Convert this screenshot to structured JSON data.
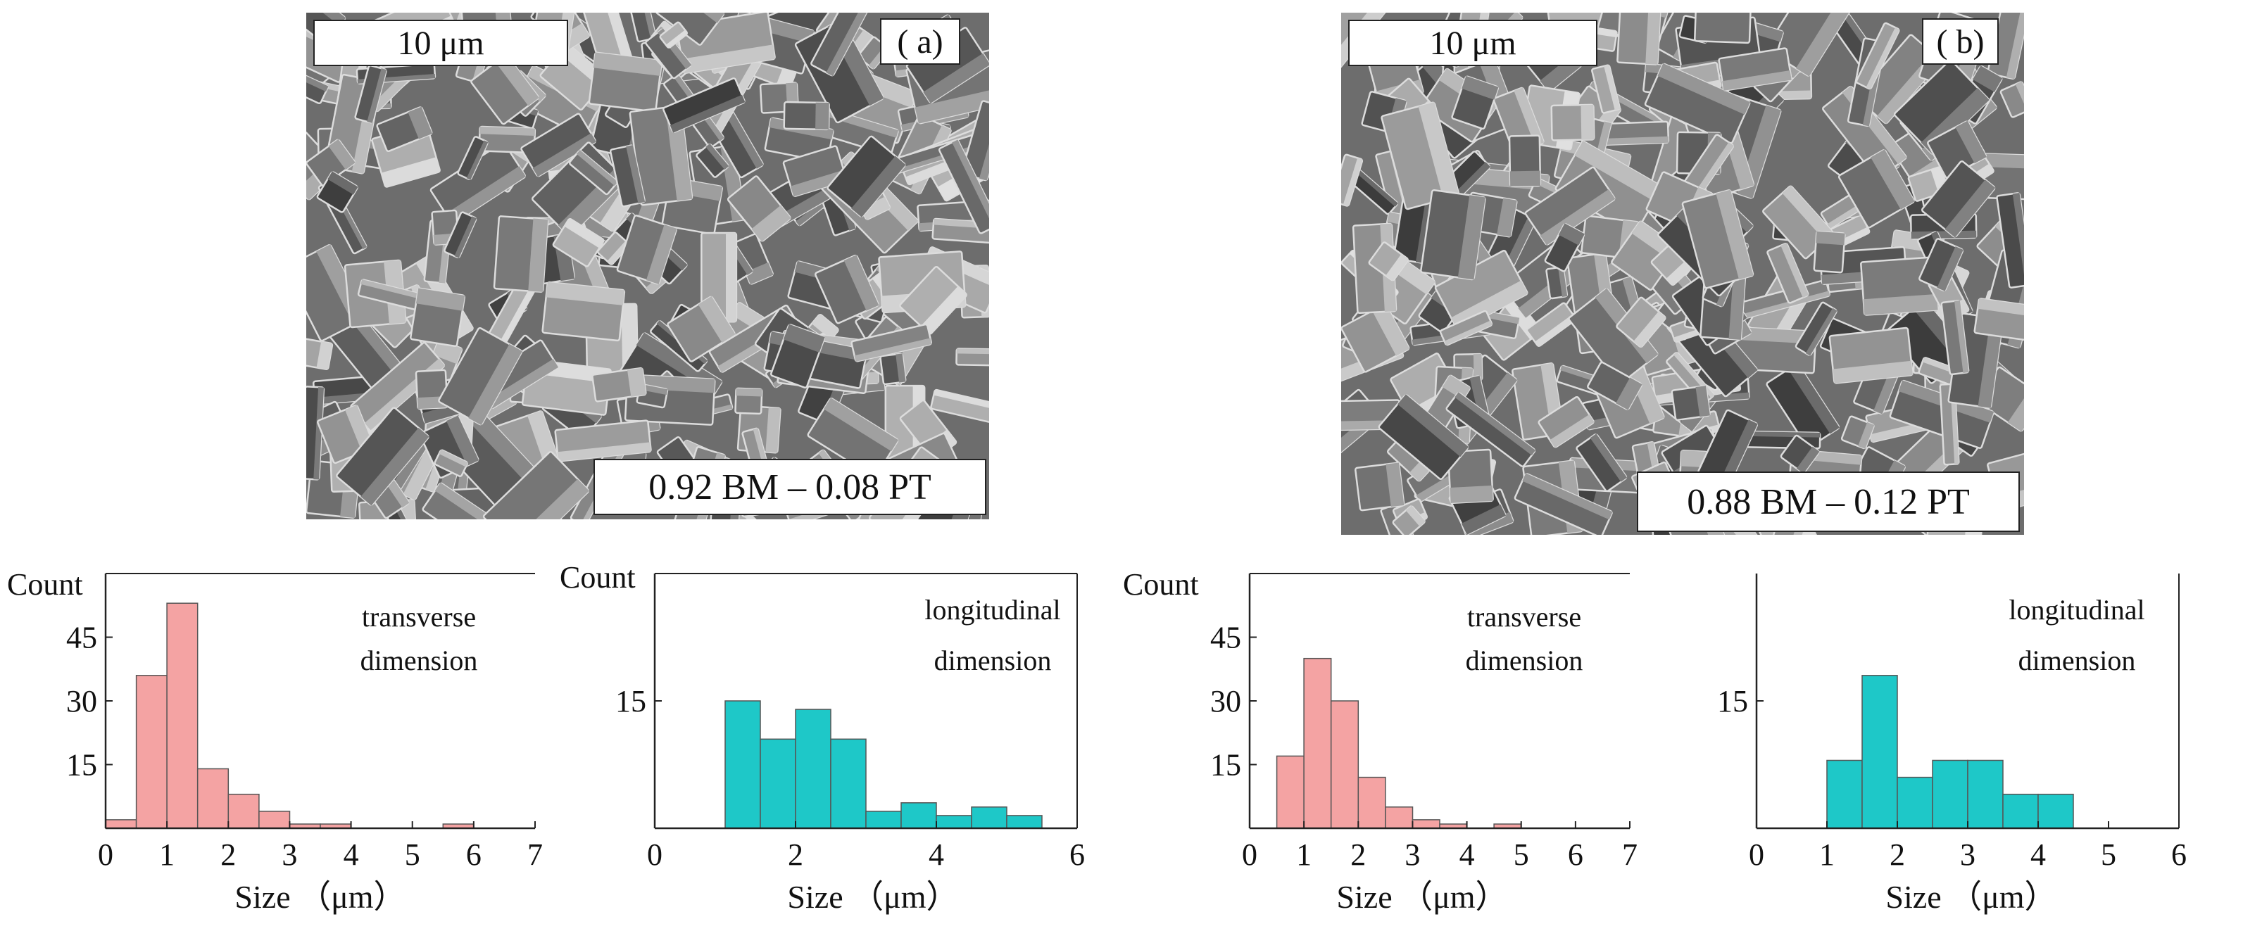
{
  "panels": [
    {
      "id": "a",
      "panel_label": "( a)",
      "scale_bar": "10 μm",
      "composition": "0.92 BM – 0.08 PT"
    },
    {
      "id": "b",
      "panel_label": "( b)",
      "scale_bar": "10 μm",
      "composition": "0.88 BM – 0.12 PT"
    }
  ],
  "chart_data": [
    {
      "type": "bar",
      "panel": "a",
      "annotation": [
        "transverse",
        "dimension"
      ],
      "ylabel": "Count",
      "xlabel": "Size （μm）",
      "xlim": [
        0,
        7
      ],
      "ylim": [
        0,
        60
      ],
      "xticks": [
        "0",
        "1",
        "2",
        "3",
        "4",
        "5",
        "6",
        "7"
      ],
      "yticks": [
        "15",
        "30",
        "45"
      ],
      "color": "#f4a3a3",
      "edges": [
        0,
        0.5,
        1.0,
        1.5,
        2.0,
        2.5,
        3.0,
        3.5,
        4.0,
        4.5,
        5.0,
        5.5,
        6.0,
        6.5
      ],
      "values": [
        2,
        36,
        53,
        14,
        8,
        4,
        1,
        1,
        0,
        0,
        0,
        1,
        0
      ]
    },
    {
      "type": "bar",
      "panel": "a",
      "annotation": [
        "longitudinal",
        "dimension"
      ],
      "ylabel": "Count",
      "xlabel": "Size （μm）",
      "xlim": [
        0,
        6
      ],
      "ylim": [
        0,
        30
      ],
      "xticks": [
        "0",
        "2",
        "4",
        "6"
      ],
      "yticks": [
        "15"
      ],
      "color": "#1ec8c8",
      "edges": [
        1.0,
        1.5,
        2.0,
        2.5,
        3.0,
        3.5,
        4.0,
        4.5,
        5.0,
        5.5
      ],
      "values": [
        15,
        10.5,
        14,
        10.5,
        2,
        3,
        1.5,
        2.5,
        1.5
      ]
    },
    {
      "type": "bar",
      "panel": "b",
      "annotation": [
        "transverse",
        "dimension"
      ],
      "ylabel": "Count",
      "xlabel": "Size （μm）",
      "xlim": [
        0,
        7
      ],
      "ylim": [
        0,
        60
      ],
      "xticks": [
        "0",
        "1",
        "2",
        "3",
        "4",
        "5",
        "6",
        "7"
      ],
      "yticks": [
        "15",
        "30",
        "45"
      ],
      "color": "#f4a3a3",
      "edges": [
        0.5,
        1.0,
        1.5,
        2.0,
        2.5,
        3.0,
        3.5,
        4.0,
        4.5,
        5.0
      ],
      "values": [
        17,
        40,
        30,
        12,
        5,
        2,
        1,
        0,
        1
      ]
    },
    {
      "type": "bar",
      "panel": "b",
      "annotation": [
        "longitudinal",
        "dimension"
      ],
      "ylabel": "",
      "xlabel": "Size （μm）",
      "xlim": [
        0,
        6
      ],
      "ylim": [
        0,
        30
      ],
      "xticks": [
        "0",
        "1",
        "2",
        "3",
        "4",
        "5",
        "6"
      ],
      "yticks": [
        "15"
      ],
      "color": "#1ec8c8",
      "edges": [
        1.0,
        1.5,
        2.0,
        2.5,
        3.0,
        3.5,
        4.0,
        4.5
      ],
      "values": [
        8,
        18,
        6,
        8,
        8,
        4,
        4
      ]
    }
  ]
}
